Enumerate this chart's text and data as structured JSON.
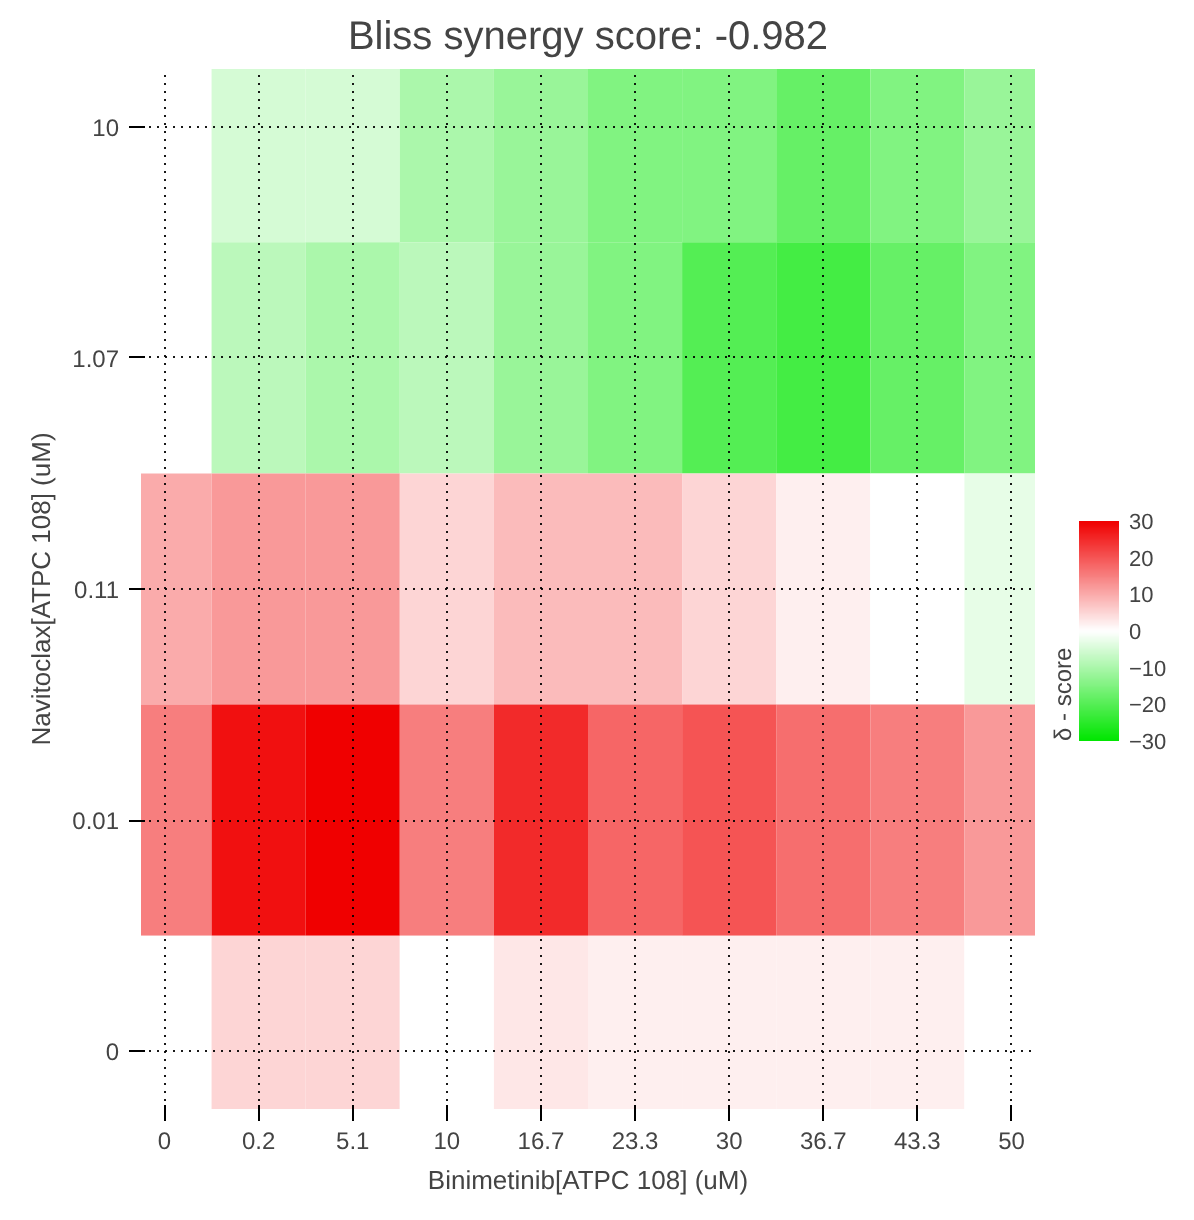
{
  "chart_data": {
    "type": "heatmap",
    "title": "Bliss synergy score: -0.982",
    "xlabel": "Binimetinib[ATPC 108] (uM)",
    "ylabel": "Navitoclax[ATPC 108] (uM)",
    "clabel": "δ - score",
    "categories": [
      "0",
      "0.2",
      "5.1",
      "10",
      "16.7",
      "23.3",
      "30",
      "36.7",
      "43.3",
      "50"
    ],
    "y_categories": [
      "10",
      "1.07",
      "0.11",
      "0.01",
      "0"
    ],
    "cells": [
      [
        0,
        -5,
        -5,
        -10,
        -12,
        -15,
        -15,
        -18,
        -15,
        -12
      ],
      [
        0,
        -8,
        -10,
        -8,
        -12,
        -15,
        -20,
        -22,
        -18,
        -15
      ],
      [
        10,
        12,
        12,
        5,
        8,
        8,
        5,
        2,
        0,
        -3
      ],
      [
        15,
        28,
        30,
        15,
        25,
        18,
        20,
        17,
        15,
        12
      ],
      [
        0,
        5,
        5,
        0,
        3,
        2,
        2,
        2,
        2,
        0
      ]
    ],
    "clim": [
      -30,
      30
    ],
    "cticks": [
      -30,
      -20,
      -10,
      0,
      10,
      20,
      30
    ],
    "grid": true
  }
}
